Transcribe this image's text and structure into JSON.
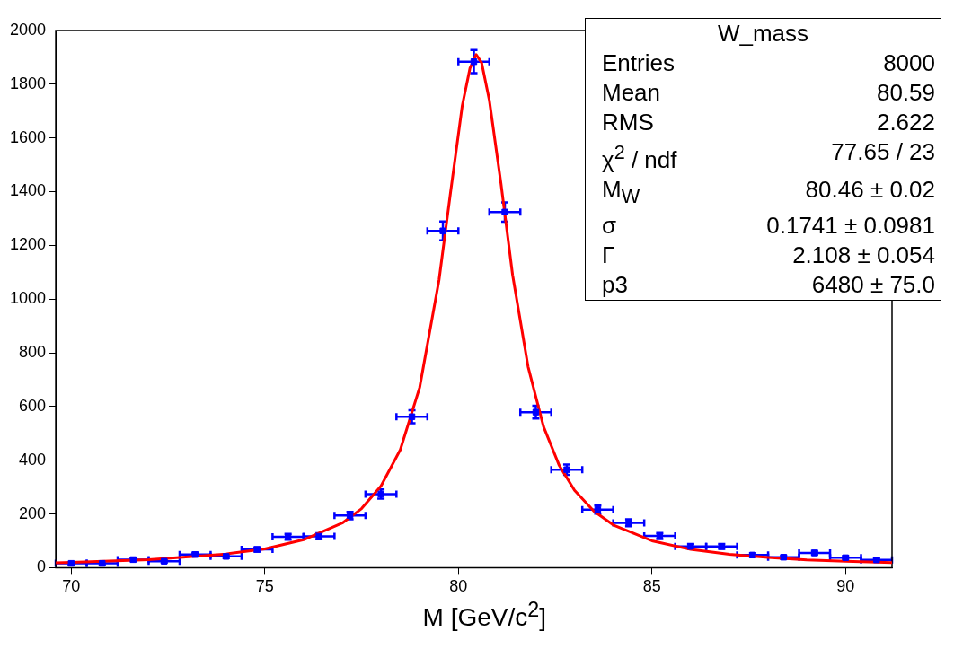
{
  "chart_data": {
    "type": "scatter",
    "xlabel": "M [GeV/c$^{2}$]",
    "xlim": [
      69.6,
      91.2
    ],
    "xticks": [
      70,
      75,
      80,
      85,
      90
    ],
    "ylim": [
      0,
      2000
    ],
    "yticks": [
      0,
      200,
      400,
      600,
      800,
      1000,
      1200,
      1400,
      1600,
      1800,
      2000
    ],
    "grid": false,
    "legend": false,
    "series": [
      {
        "color": "#0000ff",
        "marker": "square",
        "x": [
          70.0,
          70.8,
          71.6,
          72.4,
          73.2,
          74.0,
          74.8,
          75.6,
          76.4,
          77.2,
          78.0,
          78.8,
          79.6,
          80.4,
          81.2,
          82.0,
          82.8,
          83.6,
          84.4,
          85.2,
          86.0,
          86.8,
          87.6,
          88.4,
          89.2,
          90.0,
          90.8
        ],
        "values": [
          16,
          16,
          30,
          24,
          49,
          42,
          68,
          115,
          117,
          194,
          274,
          562,
          1254,
          1884,
          1324,
          579,
          365,
          216,
          167,
          118,
          79,
          79,
          47,
          39,
          55,
          37,
          29
        ],
        "errors": [
          4,
          4,
          5,
          5,
          7,
          6,
          8,
          11,
          11,
          14,
          17,
          24,
          35,
          43,
          36,
          24,
          19,
          15,
          13,
          11,
          9,
          9,
          7,
          6,
          7,
          6,
          5
        ],
        "xerrors": [
          0.4,
          0.4,
          0.4,
          0.4,
          0.4,
          0.4,
          0.4,
          0.4,
          0.4,
          0.4,
          0.4,
          0.4,
          0.4,
          0.4,
          0.4,
          0.4,
          0.4,
          0.4,
          0.4,
          0.4,
          0.4,
          0.4,
          0.4,
          0.4,
          0.4,
          0.4,
          0.4
        ]
      },
      {
        "type": "line",
        "color": "#ff0000",
        "marker": "none",
        "x": [
          69.6,
          70,
          72,
          74,
          75,
          76,
          77,
          77.5,
          78,
          78.5,
          79,
          79.5,
          79.8,
          80.1,
          80.3,
          80.46,
          80.6,
          80.8,
          81.1,
          81.4,
          81.8,
          82.2,
          82.6,
          83,
          83.5,
          84,
          85,
          86,
          87,
          88,
          89,
          90,
          91.2
        ],
        "values": [
          18,
          20,
          30,
          51,
          70,
          104,
          166,
          220,
          304,
          439,
          671,
          1071,
          1400,
          1720,
          1860,
          1910,
          1880,
          1740,
          1430,
          1090,
          748,
          525,
          382,
          288,
          210,
          159,
          100,
          68,
          50,
          38,
          29,
          24,
          19
        ]
      }
    ],
    "annotations": [
      "W_mass",
      "Entries",
      "8000",
      "Mean",
      "80.59",
      "RMS",
      "2.622",
      "χ$^{2}$ / ndf",
      "77.65 / 23",
      "M$_{W}$",
      "80.46 ± 0.02",
      "σ",
      "0.1741 ± 0.0981",
      "Γ",
      "2.108 ± 0.054",
      "p3",
      "6480 ± 75.0"
    ]
  }
}
